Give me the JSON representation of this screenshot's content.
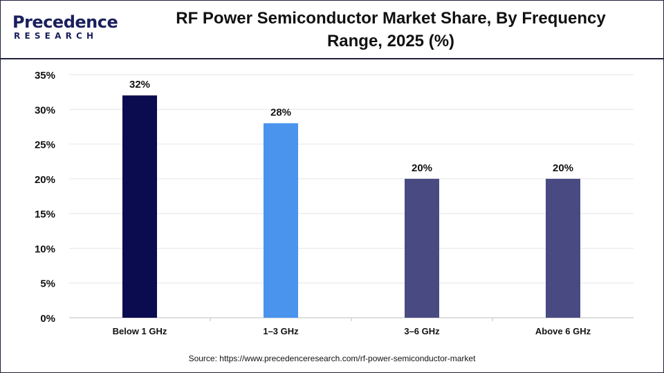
{
  "logo": {
    "name": "Precedence",
    "sub": "RESEARCH",
    "colors": {
      "primary": "#1a1f5c",
      "accent": "#4a90e2"
    }
  },
  "header": {
    "title_line1": "RF Power Semiconductor Market Share, By Frequency",
    "title_line2": "Range, 2025 (%)"
  },
  "chart_data": {
    "type": "bar",
    "title": "RF Power Semiconductor Market Share, By Frequency Range, 2025 (%)",
    "categories": [
      "Below 1 GHz",
      "1–3 GHz",
      "3–6 GHz",
      "Above 6 GHz"
    ],
    "values": [
      32,
      28,
      20,
      20
    ],
    "value_labels": [
      "32%",
      "28%",
      "20%",
      "20%"
    ],
    "colors": [
      "#0b0b4f",
      "#4a94ee",
      "#4a4a82",
      "#4a4a82"
    ],
    "yticks": [
      0,
      5,
      10,
      15,
      20,
      25,
      30,
      35
    ],
    "ytick_labels": [
      "0%",
      "5%",
      "10%",
      "15%",
      "20%",
      "25%",
      "30%",
      "35%"
    ],
    "ylim": [
      0,
      35
    ],
    "xlabel": "",
    "ylabel": "",
    "grid": true
  },
  "footer": {
    "source": "Source: https://www.precedenceresearch.com/rf-power-semiconductor-market"
  }
}
